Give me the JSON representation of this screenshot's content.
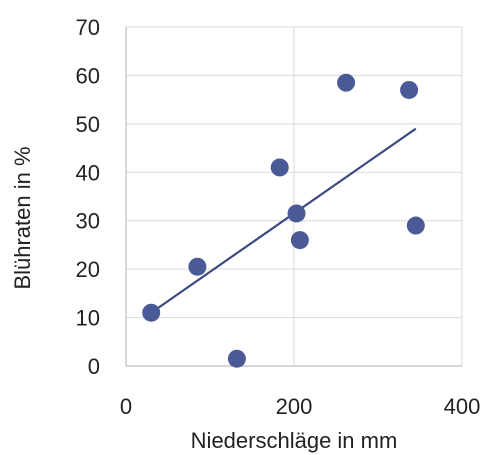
{
  "chart_data": {
    "type": "scatter",
    "xlabel": "Niederschläge in mm",
    "ylabel": "Blühraten in %",
    "xlim": [
      0,
      400
    ],
    "ylim": [
      0,
      70
    ],
    "x_ticks": [
      0,
      200,
      400
    ],
    "y_ticks": [
      0,
      10,
      20,
      30,
      40,
      50,
      60,
      70
    ],
    "x_tick_labels": [
      "0",
      "200",
      "400"
    ],
    "y_tick_labels": [
      "0",
      "10",
      "20",
      "30",
      "40",
      "50",
      "60",
      "70"
    ],
    "grid": true,
    "series": [
      {
        "x": [
          30,
          85,
          132,
          183,
          203,
          207,
          262,
          337,
          345
        ],
        "y": [
          11,
          20.5,
          1.5,
          41,
          31.5,
          26,
          58.5,
          57,
          29
        ],
        "color": "#4a5a96"
      }
    ],
    "trendline": {
      "x": [
        30,
        345
      ],
      "y": [
        11,
        49
      ],
      "color": "#3e4a82"
    }
  }
}
